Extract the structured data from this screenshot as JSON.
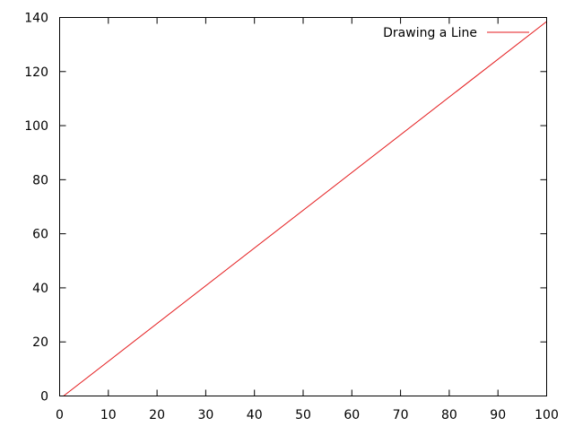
{
  "chart_data": {
    "type": "line",
    "title": "",
    "xlabel": "",
    "ylabel": "",
    "xlim": [
      0,
      100
    ],
    "ylim": [
      0,
      140
    ],
    "x_ticks": [
      0,
      10,
      20,
      30,
      40,
      50,
      60,
      70,
      80,
      90,
      100
    ],
    "y_ticks": [
      0,
      20,
      40,
      60,
      80,
      100,
      120,
      140
    ],
    "grid": false,
    "legend": {
      "position": "top-right"
    },
    "series": [
      {
        "name": "Drawing a Line",
        "color": "#e41a1c",
        "x": [
          0.8,
          100
        ],
        "y": [
          0,
          138.5
        ]
      }
    ]
  }
}
